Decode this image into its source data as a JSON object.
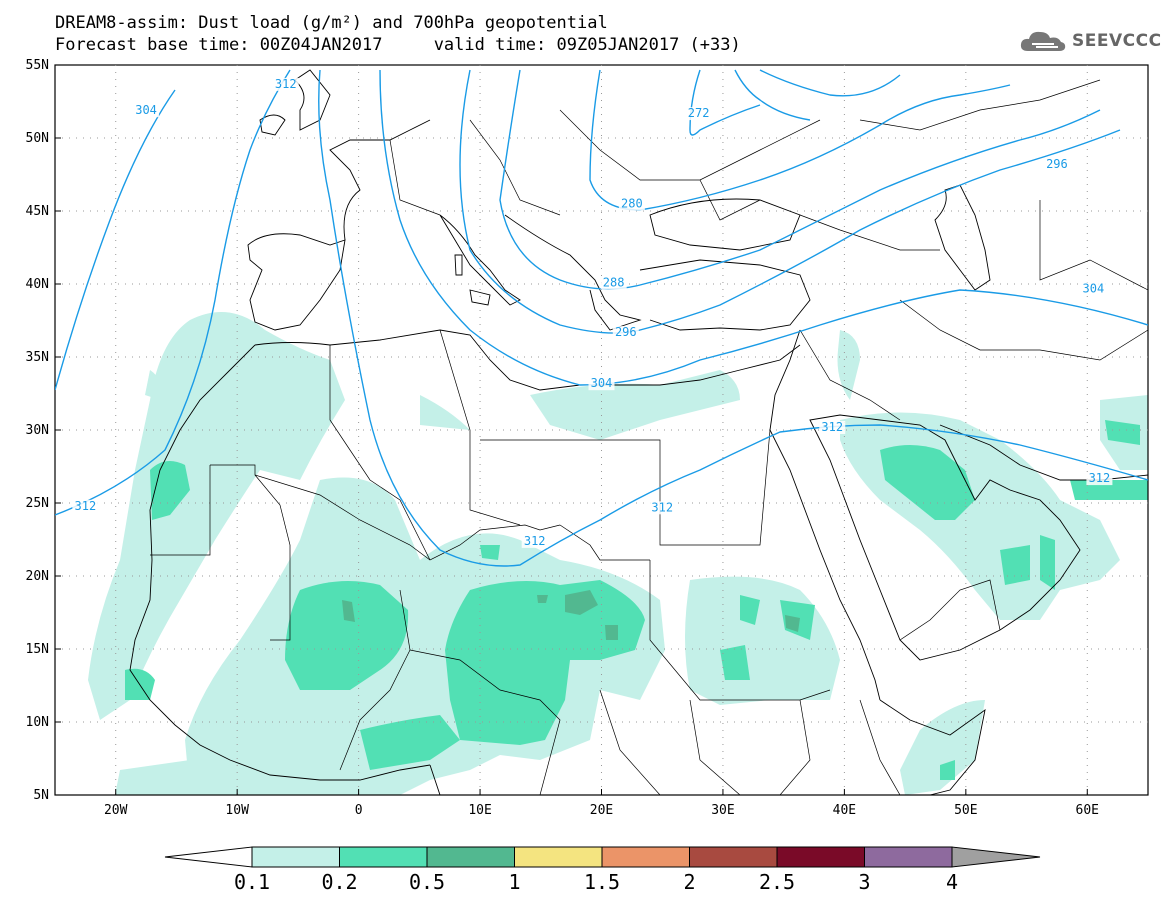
{
  "header": {
    "title_line1": "DREAM8-assim: Dust load (g/m²) and 700hPa geopotential",
    "title_line2": "Forecast base time: 00Z04JAN2017     valid time: 09Z05JAN2017 (+33)",
    "logo_text": "SEEVCCC",
    "logo_icon": "cloud-icon"
  },
  "map": {
    "lon_range": [
      -25,
      65
    ],
    "lat_range": [
      5,
      55
    ],
    "lat_ticks": [
      "55N",
      "50N",
      "45N",
      "40N",
      "35N",
      "30N",
      "25N",
      "20N",
      "15N",
      "10N",
      "5N"
    ],
    "lat_values": [
      55,
      50,
      45,
      40,
      35,
      30,
      25,
      20,
      15,
      10,
      5
    ],
    "lon_ticks": [
      "20W",
      "10W",
      "0",
      "10E",
      "20E",
      "30E",
      "40E",
      "50E",
      "60E"
    ],
    "lon_values": [
      -20,
      -10,
      0,
      10,
      20,
      30,
      40,
      50,
      60
    ],
    "gridlines": "dotted",
    "contour_color": "#1a9be6",
    "contour_labels": [
      {
        "text": "304",
        "lon": -17.5,
        "lat": 51.7
      },
      {
        "text": "312",
        "lon": -6,
        "lat": 53.5
      },
      {
        "text": "272",
        "lon": 28,
        "lat": 51.5
      },
      {
        "text": "280",
        "lon": 22.5,
        "lat": 45.3
      },
      {
        "text": "296",
        "lon": 57.5,
        "lat": 48.0
      },
      {
        "text": "288",
        "lon": 21,
        "lat": 39.9
      },
      {
        "text": "296",
        "lon": 22,
        "lat": 36.5
      },
      {
        "text": "304",
        "lon": 60.5,
        "lat": 39.5
      },
      {
        "text": "304",
        "lon": 20,
        "lat": 33.0
      },
      {
        "text": "312",
        "lon": 39,
        "lat": 30.0
      },
      {
        "text": "312",
        "lon": 61,
        "lat": 26.5
      },
      {
        "text": "312",
        "lon": -22.5,
        "lat": 24.6
      },
      {
        "text": "312",
        "lon": 25,
        "lat": 24.5
      },
      {
        "text": "312",
        "lon": 14.5,
        "lat": 22.2
      }
    ]
  },
  "colorbar": {
    "labels": [
      "0.1",
      "0.2",
      "0.5",
      "1",
      "1.5",
      "2",
      "2.5",
      "3",
      "4"
    ],
    "colors": [
      "#c4f0e8",
      "#52e0b4",
      "#52b890",
      "#f4e480",
      "#eb9468",
      "#a84a40",
      "#7a0a28",
      "#8e6a9e"
    ],
    "under_color": "#ffffff",
    "over_color": "#a0a0a0"
  }
}
